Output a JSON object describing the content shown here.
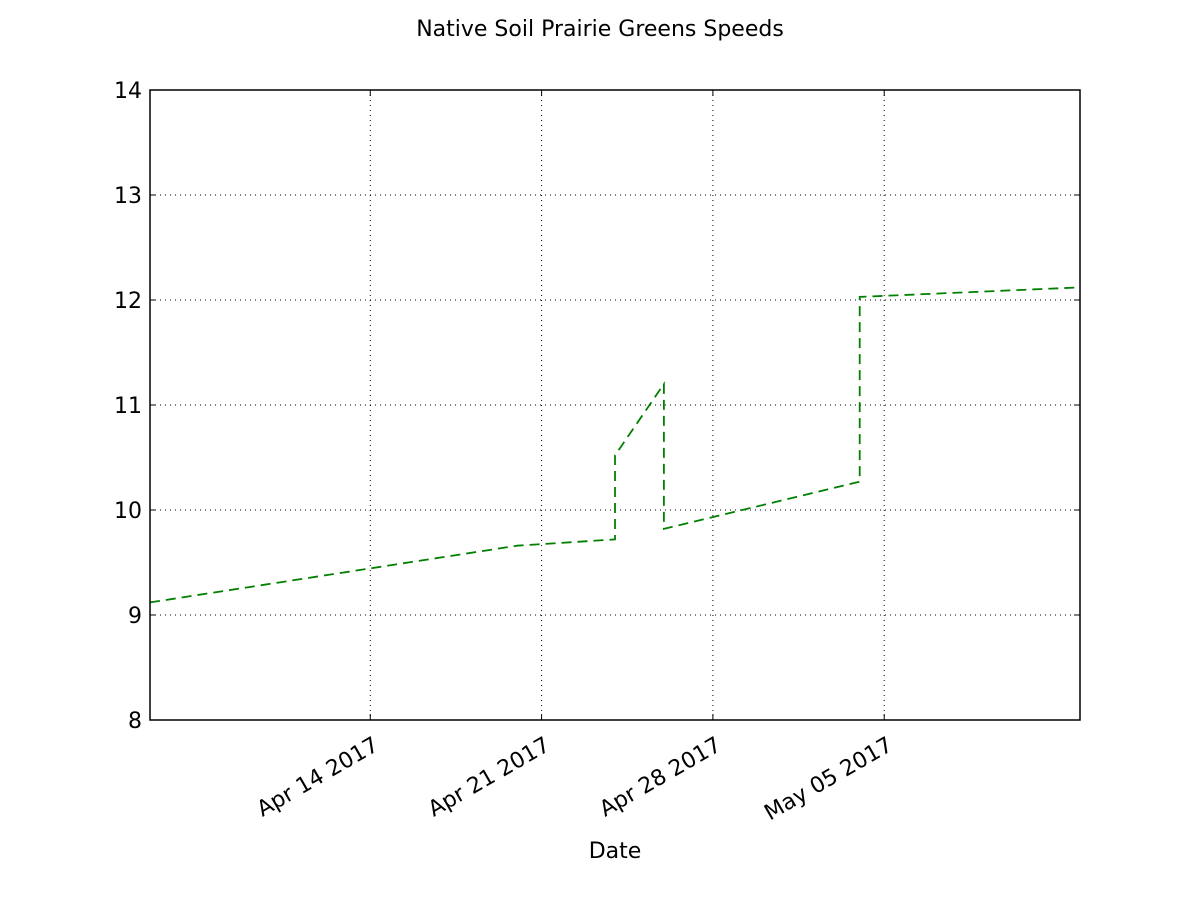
{
  "chart_data": {
    "type": "line",
    "title": "Native Soil Prairie Greens Speeds",
    "xlabel": "Date",
    "ylabel": "",
    "x_type": "date",
    "xlim": [
      "2017-04-05",
      "2017-05-13"
    ],
    "ylim": [
      8,
      14
    ],
    "x_ticks": [
      "2017-04-14",
      "2017-04-21",
      "2017-04-28",
      "2017-05-05"
    ],
    "x_tick_labels": [
      "Apr 14 2017",
      "Apr 21 2017",
      "Apr 28 2017",
      "May 05 2017"
    ],
    "y_ticks": [
      8,
      9,
      10,
      11,
      12,
      13,
      14
    ],
    "grid": true,
    "series": [
      {
        "color": "#008000",
        "line_style": "dashed",
        "x": [
          "2017-04-05",
          "2017-04-20",
          "2017-04-24",
          "2017-04-24",
          "2017-04-26",
          "2017-04-26",
          "2017-05-04",
          "2017-05-04",
          "2017-05-13"
        ],
        "y": [
          9.12,
          9.66,
          9.72,
          10.52,
          11.2,
          9.82,
          10.27,
          12.03,
          12.12
        ]
      }
    ]
  }
}
